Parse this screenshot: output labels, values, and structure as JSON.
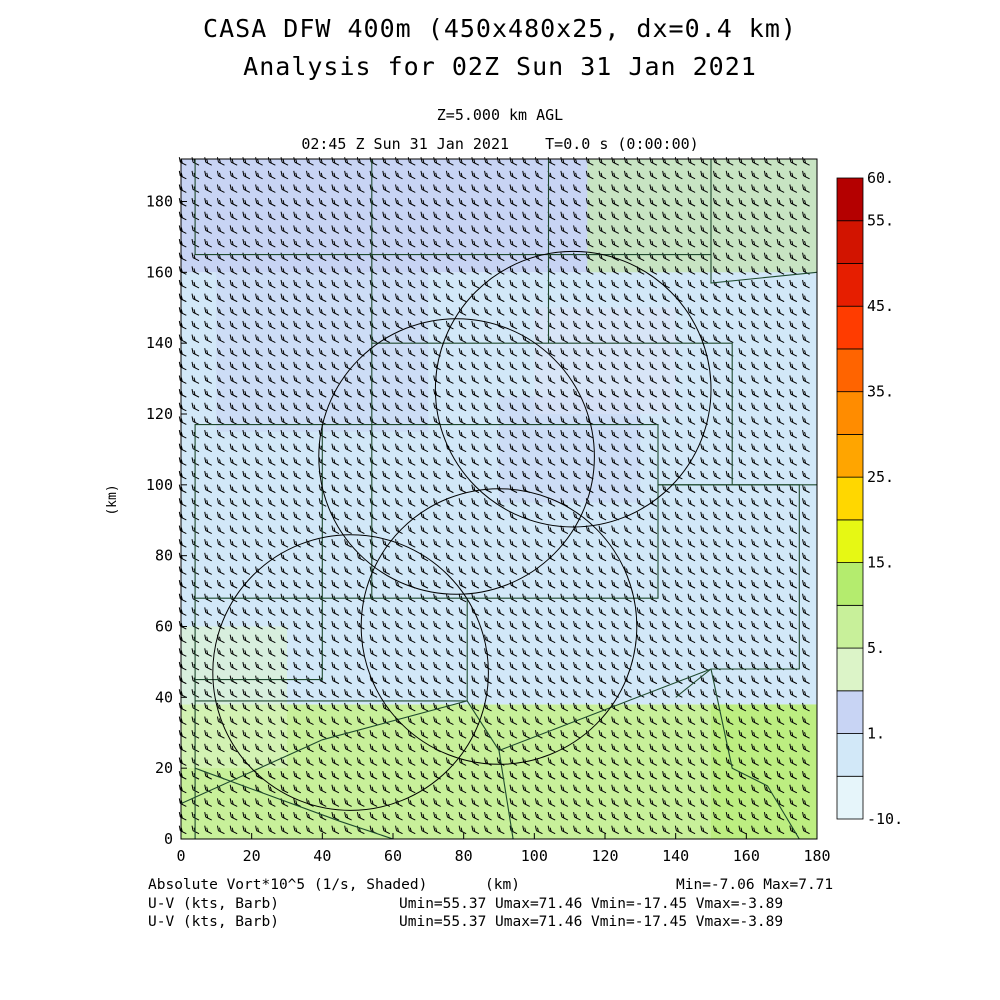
{
  "header": {
    "title1": "CASA DFW 400m (450x480x25, dx=0.4 km)",
    "title2": "Analysis for 02Z Sun 31 Jan 2021",
    "level": "Z=5.000 km AGL",
    "time": "02:45 Z Sun 31 Jan 2021    T=0.0 s (0:00:00)"
  },
  "footer": {
    "field1": "Absolute Vort*10^5 (1/s, Shaded)",
    "xunit": "(km)",
    "minmax": "Min=-7.06 Max=7.71",
    "field2": "U-V (kts, Barb)",
    "uv2": "Umin=55.37 Umax=71.46 Vmin=-17.45 Vmax=-3.89",
    "field3": "U-V (kts, Barb)",
    "uv3": "Umin=55.37 Umax=71.46 Vmin=-17.45 Vmax=-3.89"
  },
  "chart_data": {
    "type": "heatmap",
    "xlabel": "(km)",
    "ylabel": "(km)",
    "xlim": [
      0,
      180
    ],
    "ylim": [
      0,
      192
    ],
    "x_ticks": [
      "0",
      "20",
      "40",
      "60",
      "80",
      "100",
      "120",
      "140",
      "160",
      "180"
    ],
    "y_ticks": [
      "0",
      "20",
      "40",
      "60",
      "80",
      "100",
      "120",
      "140",
      "160",
      "180"
    ],
    "colorbar": {
      "labels": [
        "-10.",
        "1.",
        "5.",
        "15.",
        "25.",
        "35.",
        "45.",
        "55.",
        "60."
      ],
      "colors": [
        "#e6f5fa",
        "#d2e8f8",
        "#c8d4f4",
        "#dcf4c8",
        "#c8f09a",
        "#b4ec6e",
        "#e6f814",
        "#ffd700",
        "#ffa500",
        "#ff8c00",
        "#ff6400",
        "#ff3c00",
        "#e61e00",
        "#d21400",
        "#b40000"
      ]
    },
    "shading": [
      {
        "region": "south",
        "y_range": [
          0,
          38
        ],
        "level": "5."
      },
      {
        "region": "central",
        "y_range": [
          38,
          160
        ],
        "level": "-10. to 1."
      },
      {
        "region": "north",
        "y_range": [
          160,
          192
        ],
        "level": "1."
      }
    ],
    "wind_barbs": {
      "direction": "west-northwest",
      "u_range_kts": [
        55.37,
        71.46
      ],
      "v_range_kts": [
        -17.45,
        -3.89
      ]
    },
    "range_rings_km": [
      {
        "center": [
          111,
          127
        ],
        "radius": 39
      },
      {
        "center": [
          78,
          108
        ],
        "radius": 39
      },
      {
        "center": [
          90,
          60
        ],
        "radius": 39
      },
      {
        "center": [
          48,
          47
        ],
        "radius": 39
      }
    ],
    "colors": {
      "rings": "#000000",
      "county_lines": "#1e4a2e",
      "barbs": "#000000"
    }
  }
}
